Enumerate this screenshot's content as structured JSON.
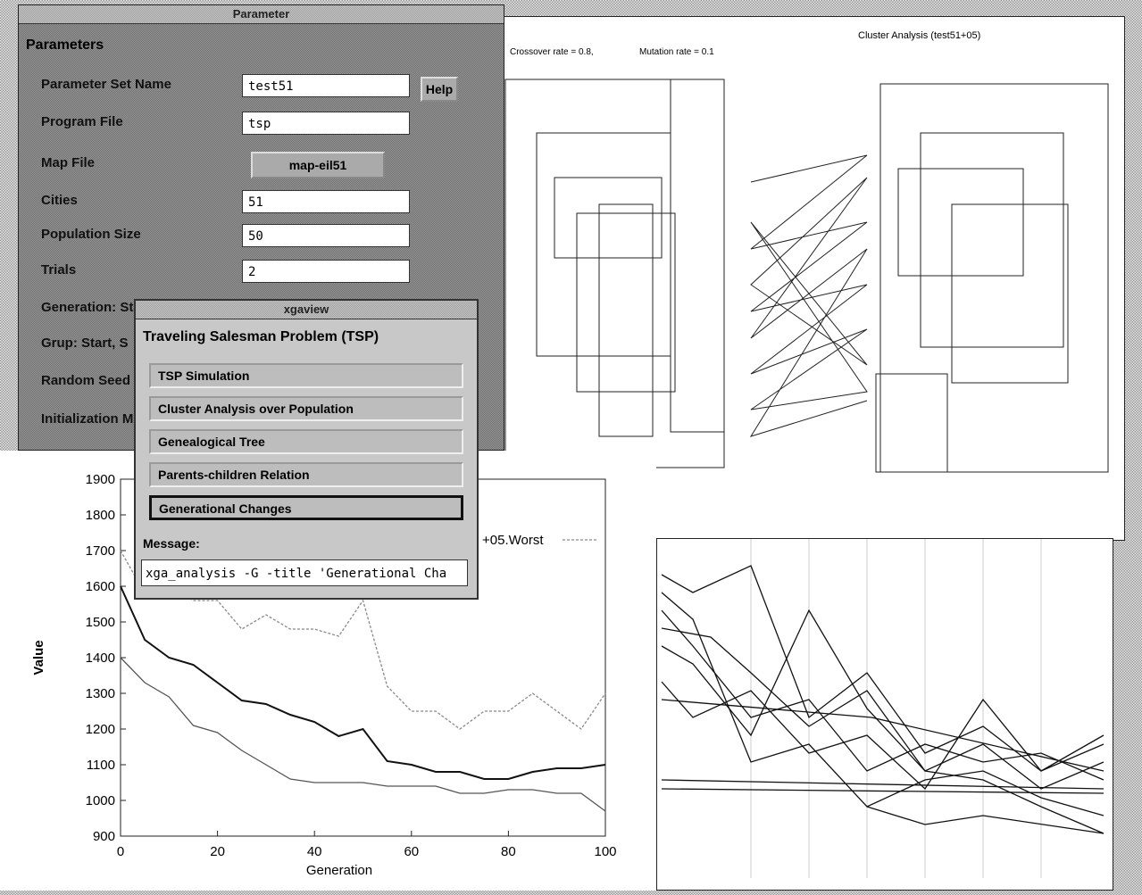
{
  "parameter_window": {
    "title": "Parameter",
    "heading": "Parameters",
    "help_button": "Help",
    "fields": [
      {
        "label": "Parameter Set Name",
        "value": "test51"
      },
      {
        "label": "Program File",
        "value": "tsp"
      },
      {
        "label": "Map File",
        "value": "map-eil51"
      },
      {
        "label": "Cities",
        "value": "51"
      },
      {
        "label": "Population Size",
        "value": "50"
      },
      {
        "label": "Trials",
        "value": "2"
      },
      {
        "label": "Generation: Sta"
      },
      {
        "label": "Grup: Start, S"
      },
      {
        "label": "Random Seed"
      },
      {
        "label": "Initialization M"
      }
    ]
  },
  "xgaview_window": {
    "title": "xgaview",
    "heading": "Traveling Salesman Problem (TSP)",
    "buttons": [
      "TSP Simulation",
      "Cluster Analysis over Population",
      "Genealogical Tree",
      "Parents-children Relation",
      "Generational Changes"
    ],
    "message_label": "Message:",
    "message": "xga_analysis -G -title 'Generational Cha"
  },
  "cluster_window": {
    "title": "Cluster Analysis (test51+05)",
    "crossover": "Crossover rate = 0.8,",
    "mutation": "Mutation rate = 0.1"
  },
  "chart_data": {
    "type": "line",
    "x_label": "Generation",
    "y_label": "Value",
    "x": [
      0,
      5,
      10,
      15,
      20,
      25,
      30,
      35,
      40,
      45,
      50,
      55,
      60,
      65,
      70,
      75,
      80,
      85,
      90,
      95,
      100
    ],
    "series": [
      {
        "name": "+05.Worst",
        "color": "#888888",
        "values": [
          1700,
          1580,
          1600,
          1560,
          1560,
          1480,
          1520,
          1480,
          1480,
          1460,
          1560,
          1320,
          1250,
          1250,
          1200,
          1250,
          1250,
          1300,
          1250,
          1200,
          1300
        ]
      },
      {
        "color": "#111111",
        "values": [
          1600,
          1450,
          1400,
          1380,
          1330,
          1280,
          1270,
          1240,
          1220,
          1180,
          1200,
          1110,
          1100,
          1080,
          1080,
          1060,
          1060,
          1080,
          1090,
          1090,
          1100
        ]
      },
      {
        "color": "#555555",
        "values": [
          1400,
          1330,
          1290,
          1210,
          1190,
          1140,
          1100,
          1060,
          1050,
          1050,
          1050,
          1040,
          1040,
          1040,
          1020,
          1020,
          1030,
          1030,
          1020,
          1020,
          970
        ]
      }
    ],
    "xlim": [
      0,
      100
    ],
    "ylim": [
      900,
      1900
    ],
    "xticks": [
      0,
      20,
      40,
      60,
      80,
      100
    ],
    "yticks": [
      900,
      1000,
      1100,
      1200,
      1300,
      1400,
      1500,
      1600,
      1700,
      1800,
      1900
    ]
  }
}
